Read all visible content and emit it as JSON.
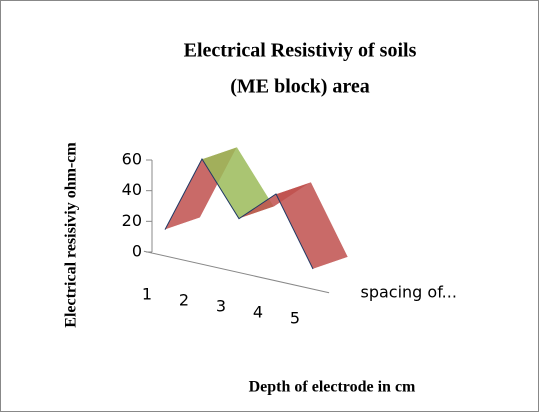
{
  "chart_data": {
    "type": "surface",
    "title": [
      "Electrical Resistiviy of soils",
      "(ME block) area"
    ],
    "y_label": "Electrical resisiviy ohm-cm",
    "x_label": "Depth of electrode in cm",
    "categories": [
      "1",
      "2",
      "3",
      "4",
      "5"
    ],
    "series": [
      {
        "name": "spacing of...",
        "values": [
          10,
          60,
          25,
          45,
          0
        ]
      }
    ],
    "ylim": [
      0,
      60
    ],
    "yticks": [
      0,
      20,
      40,
      60
    ],
    "bands": [
      {
        "upto": 20,
        "color": "#4f81bd"
      },
      {
        "upto": 40,
        "color": "#c0504d"
      },
      {
        "upto": 60,
        "color": "#9bbb59"
      }
    ]
  }
}
